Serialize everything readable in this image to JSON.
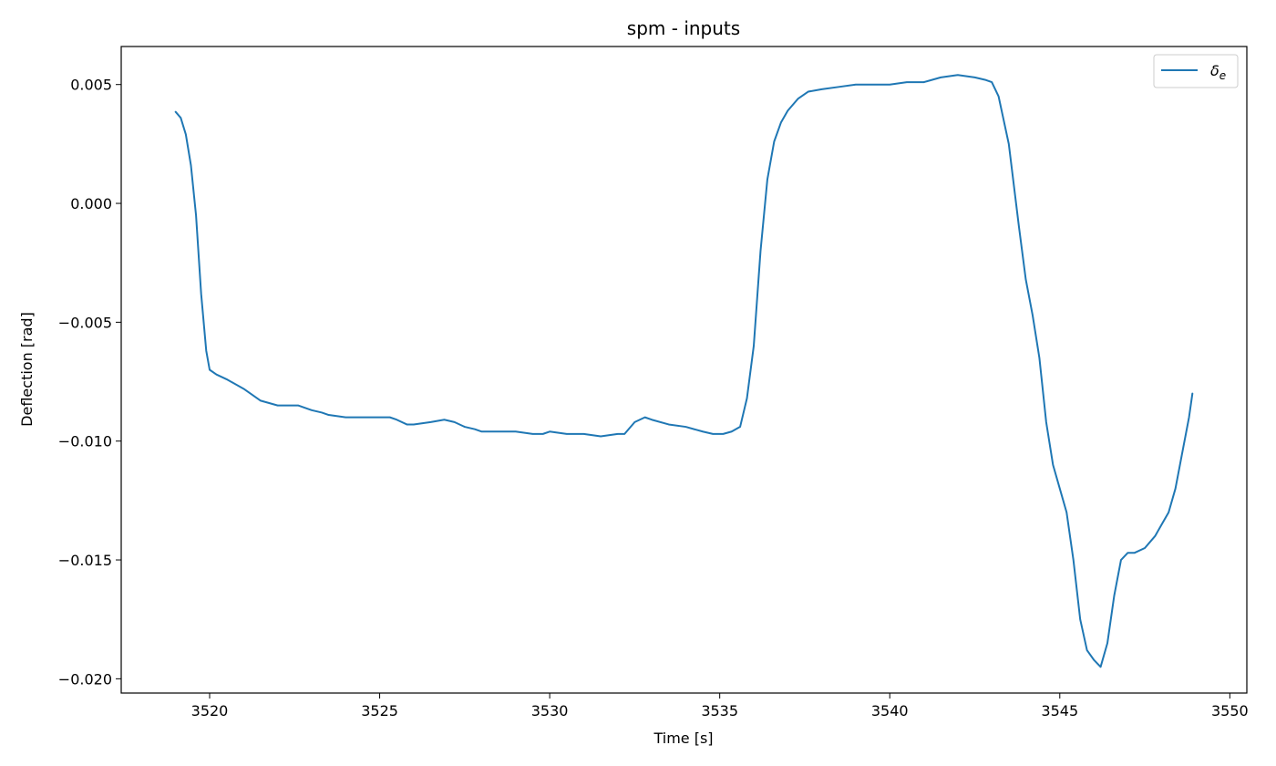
{
  "chart_data": {
    "type": "line",
    "title": "spm - inputs",
    "xlabel": "Time [s]",
    "ylabel": "Deflection [rad]",
    "xlim": [
      3517.4,
      3550.5
    ],
    "ylim": [
      -0.0206,
      0.0066
    ],
    "xticks": [
      3520,
      3525,
      3530,
      3535,
      3540,
      3545,
      3550
    ],
    "xtick_labels": [
      "3520",
      "3525",
      "3530",
      "3535",
      "3540",
      "3545",
      "3550"
    ],
    "yticks": [
      0.005,
      0.0,
      -0.005,
      -0.01,
      -0.015,
      -0.02
    ],
    "ytick_labels": [
      "0.005",
      "0.000",
      "−0.005",
      "−0.010",
      "−0.015",
      "−0.020"
    ],
    "grid": false,
    "legend_position": "top-right",
    "series": [
      {
        "name": "δe",
        "name_base": "δ",
        "name_sub": "e",
        "color": "#1f77b4",
        "x": [
          3519.0,
          3519.15,
          3519.3,
          3519.45,
          3519.6,
          3519.75,
          3519.9,
          3520.0,
          3520.2,
          3520.5,
          3521.0,
          3521.5,
          3522.0,
          3522.3,
          3522.6,
          3523.0,
          3523.3,
          3523.5,
          3524.0,
          3524.5,
          3525.0,
          3525.3,
          3525.5,
          3525.8,
          3526.0,
          3526.5,
          3526.9,
          3527.2,
          3527.5,
          3527.8,
          3528.0,
          3528.5,
          3529.0,
          3529.5,
          3529.8,
          3530.0,
          3530.5,
          3531.0,
          3531.5,
          3532.0,
          3532.2,
          3532.5,
          3532.8,
          3533.0,
          3533.5,
          3534.0,
          3534.5,
          3534.8,
          3535.1,
          3535.35,
          3535.6,
          3535.8,
          3536.0,
          3536.2,
          3536.4,
          3536.6,
          3536.8,
          3537.0,
          3537.3,
          3537.6,
          3538.0,
          3538.5,
          3539.0,
          3539.5,
          3540.0,
          3540.5,
          3541.0,
          3541.5,
          3542.0,
          3542.5,
          3542.8,
          3543.0,
          3543.2,
          3543.5,
          3543.8,
          3544.0,
          3544.2,
          3544.4,
          3544.6,
          3544.8,
          3545.0,
          3545.2,
          3545.4,
          3545.6,
          3545.8,
          3546.0,
          3546.2,
          3546.4,
          3546.6,
          3546.8,
          3547.0,
          3547.2,
          3547.5,
          3547.8,
          3548.0,
          3548.2,
          3548.4,
          3548.6,
          3548.8,
          3548.9
        ],
        "y": [
          0.00385,
          0.0036,
          0.0029,
          0.0016,
          -0.0005,
          -0.0038,
          -0.0062,
          -0.007,
          -0.0072,
          -0.0074,
          -0.0078,
          -0.0083,
          -0.0085,
          -0.0085,
          -0.0085,
          -0.0087,
          -0.0088,
          -0.0089,
          -0.009,
          -0.009,
          -0.009,
          -0.009,
          -0.0091,
          -0.0093,
          -0.0093,
          -0.0092,
          -0.0091,
          -0.0092,
          -0.0094,
          -0.0095,
          -0.0096,
          -0.0096,
          -0.0096,
          -0.0097,
          -0.0097,
          -0.0096,
          -0.0097,
          -0.0097,
          -0.0098,
          -0.0097,
          -0.0097,
          -0.0092,
          -0.009,
          -0.0091,
          -0.0093,
          -0.0094,
          -0.0096,
          -0.0097,
          -0.0097,
          -0.0096,
          -0.0094,
          -0.0082,
          -0.006,
          -0.002,
          0.001,
          0.0026,
          0.0034,
          0.0039,
          0.0044,
          0.0047,
          0.0048,
          0.0049,
          0.005,
          0.005,
          0.005,
          0.0051,
          0.0051,
          0.0053,
          0.0054,
          0.0053,
          0.0052,
          0.0051,
          0.0045,
          0.0025,
          -0.001,
          -0.0032,
          -0.0047,
          -0.0065,
          -0.0092,
          -0.011,
          -0.012,
          -0.013,
          -0.015,
          -0.0175,
          -0.0188,
          -0.0192,
          -0.0195,
          -0.0185,
          -0.0165,
          -0.015,
          -0.0147,
          -0.0147,
          -0.0145,
          -0.014,
          -0.0135,
          -0.013,
          -0.012,
          -0.0105,
          -0.009,
          -0.008
        ]
      }
    ]
  }
}
